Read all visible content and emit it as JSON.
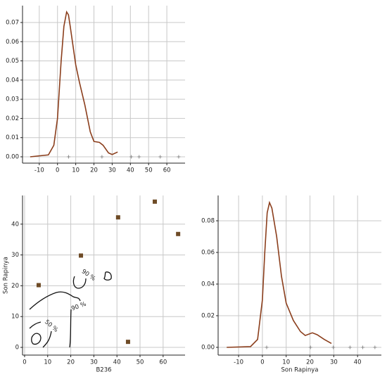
{
  "chart_data": [
    {
      "type": "line",
      "color": "#8b3e1c",
      "grid": true,
      "x": [
        -15,
        -5,
        -2,
        0,
        2,
        3.5,
        5,
        6,
        7,
        8.5,
        10,
        12,
        15,
        18,
        20,
        23,
        25,
        28,
        30,
        33
      ],
      "values": [
        0,
        0.001,
        0.006,
        0.02,
        0.05,
        0.068,
        0.0755,
        0.074,
        0.068,
        0.058,
        0.048,
        0.039,
        0.027,
        0.013,
        0.008,
        0.0075,
        0.006,
        0.002,
        0.0012,
        0.0025
      ],
      "rug": [
        6.1,
        24.4,
        40.5,
        44.8,
        56.4,
        66.5
      ],
      "xlim": [
        -19.2,
        70
      ],
      "ylim": [
        -0.0033,
        0.0788
      ],
      "xticks": [
        -10,
        0,
        10,
        20,
        30,
        40,
        50,
        60
      ],
      "yticks": [
        {
          "value": 0,
          "label": "0.00"
        },
        {
          "value": 0.01,
          "label": "0.01"
        },
        {
          "value": 0.02,
          "label": "0.02"
        },
        {
          "value": 0.03,
          "label": "0.03"
        },
        {
          "value": 0.04,
          "label": "0.04"
        },
        {
          "value": 0.05,
          "label": "0.05"
        },
        {
          "value": 0.06,
          "label": "0.06"
        },
        {
          "value": 0.07,
          "label": "0.07"
        }
      ]
    },
    {
      "type": "scatter",
      "color": "#6e4b26",
      "grid": true,
      "xlabel": "B236",
      "ylabel": "Son Rapinya",
      "x": [
        6.1,
        24.4,
        40.5,
        56.4,
        66.5,
        44.8
      ],
      "values": [
        20.2,
        29.8,
        42.2,
        47.3,
        36.8,
        1.8
      ],
      "annotations": [
        "90 %",
        "90 %",
        "50 %"
      ],
      "xlim": [
        -0.9,
        69.5
      ],
      "ylim": [
        -2.5,
        49.3
      ],
      "xticks": [
        0,
        10,
        20,
        30,
        40,
        50,
        60
      ],
      "yticks": [
        0,
        10,
        20,
        30,
        40
      ]
    },
    {
      "type": "line",
      "color": "#8b3e1c",
      "grid": true,
      "xlabel": "Son Rapinya",
      "x": [
        -15,
        -5,
        -2,
        0,
        1,
        2,
        3,
        4,
        6,
        8,
        10,
        13,
        16,
        18,
        21,
        23,
        26,
        29
      ],
      "values": [
        0,
        0.0005,
        0.005,
        0.03,
        0.06,
        0.085,
        0.0915,
        0.088,
        0.07,
        0.045,
        0.028,
        0.017,
        0.01,
        0.0075,
        0.0092,
        0.008,
        0.005,
        0.0025
      ],
      "rug": [
        1.8,
        20.2,
        29.8,
        36.8,
        42.2,
        47.3
      ],
      "xlim": [
        -18.6,
        50
      ],
      "ylim": [
        -0.0049,
        0.096
      ],
      "xticks": [
        -10,
        0,
        10,
        20,
        30,
        40
      ],
      "yticks": [
        {
          "value": 0,
          "label": "0.00"
        },
        {
          "value": 0.02,
          "label": "0.02"
        },
        {
          "value": 0.04,
          "label": "0.04"
        },
        {
          "value": 0.06,
          "label": "0.06"
        },
        {
          "value": 0.08,
          "label": "0.08"
        }
      ]
    }
  ]
}
